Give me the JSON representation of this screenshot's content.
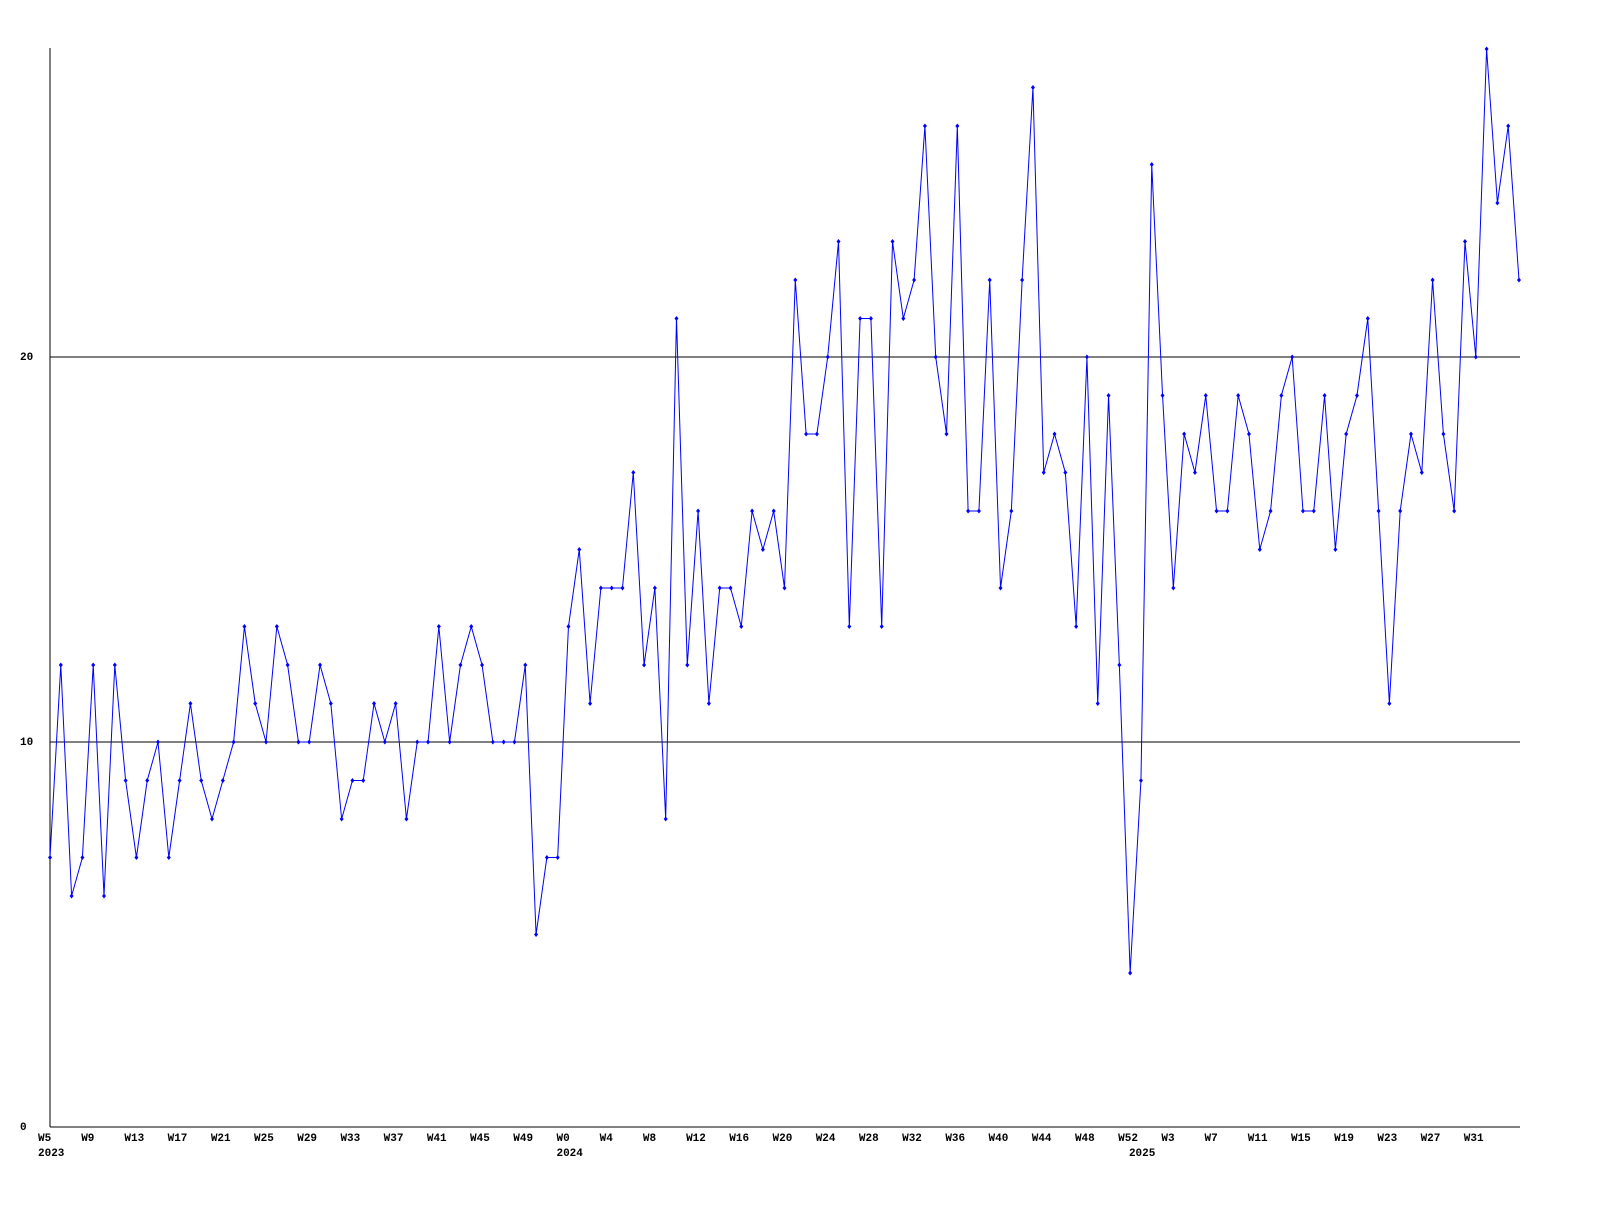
{
  "chart_data": {
    "type": "line",
    "color": "#0000ff",
    "grid": true,
    "ylim": [
      0,
      28
    ],
    "yticks": [
      0,
      10,
      20
    ],
    "categories": [
      "W5",
      null,
      null,
      null,
      "W9",
      null,
      null,
      null,
      "W13",
      null,
      null,
      null,
      "W17",
      null,
      null,
      null,
      "W21",
      null,
      null,
      null,
      "W25",
      null,
      null,
      null,
      "W29",
      null,
      null,
      null,
      "W33",
      null,
      null,
      null,
      "W37",
      null,
      null,
      null,
      "W41",
      null,
      null,
      null,
      "W45",
      null,
      null,
      null,
      "W49",
      null,
      null,
      null,
      "W0",
      null,
      null,
      null,
      "W4",
      null,
      null,
      null,
      "W8",
      null,
      null,
      null,
      "W12",
      null,
      null,
      null,
      "W16",
      null,
      null,
      null,
      "W20",
      null,
      null,
      null,
      "W24",
      null,
      null,
      null,
      "W28",
      null,
      null,
      null,
      "W32",
      null,
      null,
      null,
      "W36",
      null,
      null,
      null,
      "W40",
      null,
      null,
      null,
      "W44",
      null,
      null,
      null,
      "W48",
      null,
      null,
      null,
      "W52",
      null,
      null,
      null,
      "W3",
      null,
      null,
      null,
      "W7",
      null,
      null,
      null,
      "W11",
      null,
      null,
      null,
      "W15",
      null,
      null,
      null,
      "W19",
      null,
      null,
      null,
      "W23",
      null,
      null,
      null,
      "W27",
      null,
      null,
      null,
      "W31",
      null,
      null,
      null,
      null
    ],
    "category_groups": [
      "2023",
      null,
      null,
      null,
      null,
      null,
      null,
      null,
      null,
      null,
      null,
      null,
      null,
      null,
      null,
      null,
      null,
      null,
      null,
      null,
      null,
      null,
      null,
      null,
      null,
      null,
      null,
      null,
      null,
      null,
      null,
      null,
      null,
      null,
      null,
      null,
      null,
      null,
      null,
      null,
      null,
      null,
      null,
      null,
      null,
      null,
      null,
      null,
      "2024",
      null,
      null,
      null,
      null,
      null,
      null,
      null,
      null,
      null,
      null,
      null,
      null,
      null,
      null,
      null,
      null,
      null,
      null,
      null,
      null,
      null,
      null,
      null,
      null,
      null,
      null,
      null,
      null,
      null,
      null,
      null,
      null,
      null,
      null,
      null,
      null,
      null,
      null,
      null,
      null,
      null,
      null,
      null,
      null,
      null,
      null,
      null,
      null,
      null,
      null,
      null,
      null,
      "2025",
      null,
      null,
      null,
      null,
      null,
      null,
      null,
      null,
      null,
      null,
      null,
      null,
      null,
      null,
      null,
      null,
      null,
      null,
      null,
      null,
      null,
      null,
      null,
      null,
      null,
      null,
      null,
      null,
      null,
      null,
      null,
      null,
      null,
      null,
      null
    ],
    "values": [
      7,
      12,
      6,
      7,
      12,
      6,
      12,
      9,
      7,
      9,
      10,
      7,
      9,
      11,
      9,
      8,
      9,
      10,
      13,
      11,
      10,
      13,
      12,
      10,
      10,
      12,
      11,
      8,
      9,
      9,
      11,
      10,
      11,
      8,
      10,
      10,
      13,
      10,
      12,
      13,
      12,
      10,
      10,
      10,
      12,
      5,
      7,
      7,
      13,
      15,
      11,
      14,
      14,
      14,
      17,
      12,
      14,
      8,
      21,
      12,
      16,
      11,
      14,
      14,
      13,
      16,
      15,
      16,
      14,
      22,
      18,
      18,
      20,
      23,
      13,
      21,
      21,
      13,
      23,
      21,
      22,
      26,
      20,
      18,
      26,
      16,
      16,
      22,
      14,
      16,
      22,
      27,
      17,
      18,
      17,
      13,
      20,
      11,
      19,
      12,
      4,
      9,
      25,
      19,
      14,
      18,
      17,
      19,
      16,
      16,
      19,
      18,
      15,
      16,
      19,
      20,
      16,
      16,
      19,
      15,
      18,
      19,
      21,
      16,
      11,
      16,
      18,
      17,
      22,
      18,
      16,
      23,
      20,
      28,
      24,
      26,
      22
    ]
  }
}
